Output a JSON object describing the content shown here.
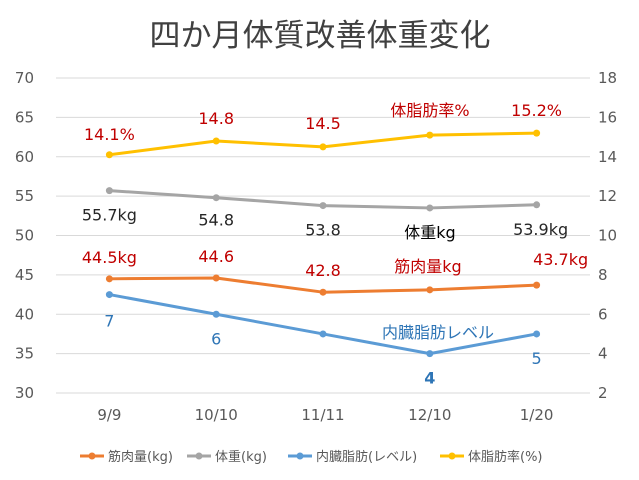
{
  "chart_data": {
    "type": "line",
    "title": "四か月体質改善体重変化",
    "categories": [
      "9/9",
      "10/10",
      "11/11",
      "12/10",
      "1/20"
    ],
    "left_axis": {
      "ylim": [
        30,
        70
      ],
      "ticks": [
        "30",
        "35",
        "40",
        "45",
        "50",
        "55",
        "60",
        "65",
        "70"
      ]
    },
    "right_axis": {
      "ylim": [
        2,
        18
      ],
      "ticks": [
        "2",
        "4",
        "6",
        "8",
        "10",
        "12",
        "14",
        "16",
        "18"
      ]
    },
    "grid": true,
    "legend_position": "bottom",
    "series": [
      {
        "name": "筋肉量(kg)",
        "axis": "left",
        "color": "#ED7D31",
        "values": [
          44.5,
          44.6,
          42.8,
          43.1,
          43.7
        ],
        "labels": [
          "44.5kg",
          "44.6",
          "42.8",
          "",
          "43.7kg"
        ],
        "label_color": "#C00000"
      },
      {
        "name": "体重(kg)",
        "axis": "left",
        "color": "#A5A5A5",
        "values": [
          55.7,
          54.8,
          53.8,
          53.5,
          53.9
        ],
        "labels": [
          "55.7kg",
          "54.8",
          "53.8",
          "",
          "53.9kg"
        ],
        "label_color": "#262626"
      },
      {
        "name": "内臓脂肪(レベル)",
        "axis": "right",
        "color": "#5B9BD5",
        "values": [
          7,
          6,
          5,
          4,
          5
        ],
        "labels": [
          "7",
          "6",
          "",
          "4",
          "5"
        ],
        "label_color": "#2E75B6"
      },
      {
        "name": "体脂肪率(%)",
        "axis": "right",
        "color": "#FFC000",
        "values": [
          14.1,
          14.8,
          14.5,
          15.1,
          15.2
        ],
        "labels": [
          "14.1%",
          "14.8",
          "14.5",
          "",
          "15.2%"
        ],
        "label_color": "#C00000"
      }
    ],
    "annotations": [
      {
        "text": "体脂肪率%",
        "color": "#C00000"
      },
      {
        "text": "体重kg",
        "color": "#000000"
      },
      {
        "text": "筋肉量kg",
        "color": "#C00000"
      },
      {
        "text": "内臓脂肪レベル",
        "color": "#2E75B6"
      }
    ]
  }
}
